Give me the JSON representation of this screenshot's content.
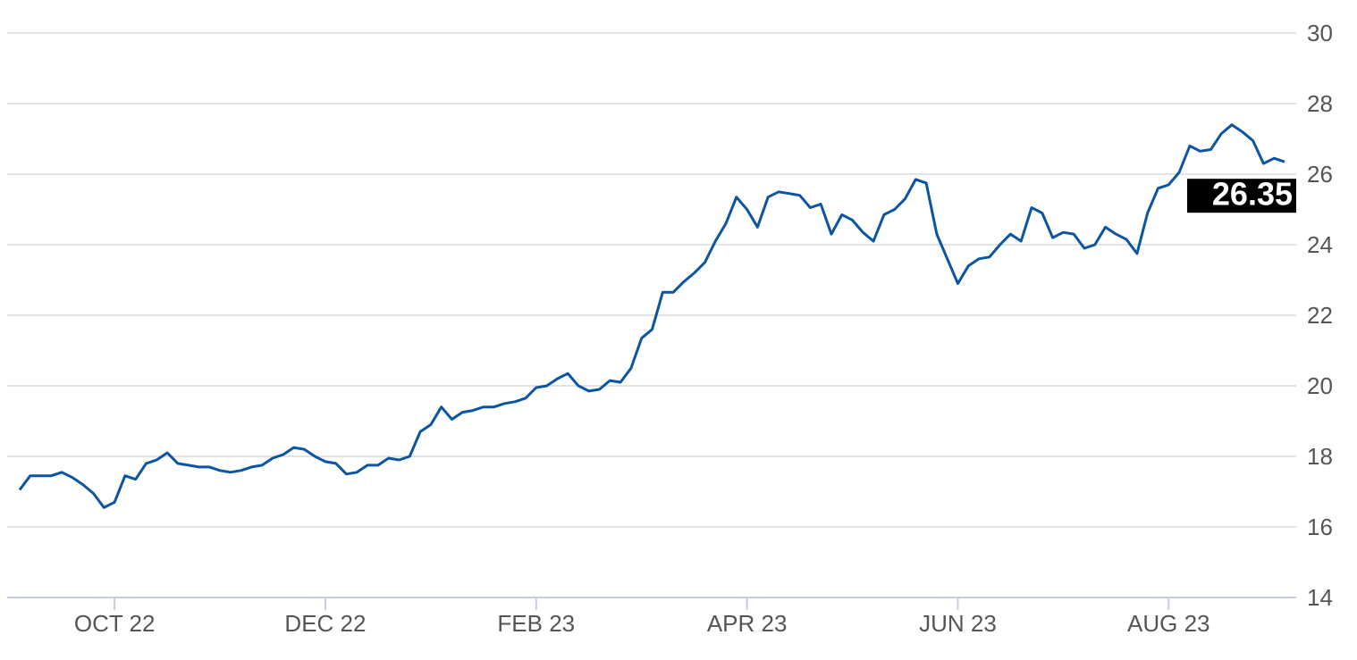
{
  "chart_data": {
    "type": "line",
    "categories": [
      null,
      null,
      null,
      null,
      null,
      null,
      null,
      null,
      null,
      "OCT 22",
      null,
      null,
      null,
      null,
      null,
      null,
      null,
      null,
      null,
      null,
      null,
      null,
      null,
      null,
      null,
      null,
      null,
      null,
      null,
      "DEC 22",
      null,
      null,
      null,
      null,
      null,
      null,
      null,
      null,
      null,
      null,
      null,
      null,
      null,
      null,
      null,
      null,
      null,
      null,
      null,
      "FEB 23",
      null,
      null,
      null,
      null,
      null,
      null,
      null,
      null,
      null,
      null,
      null,
      null,
      null,
      null,
      null,
      null,
      null,
      null,
      null,
      "APR 23",
      null,
      null,
      null,
      null,
      null,
      null,
      null,
      null,
      null,
      null,
      null,
      null,
      null,
      null,
      null,
      null,
      null,
      null,
      null,
      "JUN 23",
      null,
      null,
      null,
      null,
      null,
      null,
      null,
      null,
      null,
      null,
      null,
      null,
      null,
      null,
      null,
      null,
      null,
      null,
      null,
      "AUG 23",
      null,
      null,
      null,
      null,
      null,
      null,
      null,
      null,
      null,
      null,
      null
    ],
    "series": [
      {
        "color": "#0b55a3",
        "values": [
          17.05,
          17.45,
          17.45,
          17.45,
          17.55,
          17.4,
          17.2,
          16.95,
          16.55,
          16.7,
          17.45,
          17.35,
          17.8,
          17.9,
          18.1,
          17.8,
          17.75,
          17.7,
          17.7,
          17.6,
          17.55,
          17.6,
          17.7,
          17.75,
          17.95,
          18.05,
          18.25,
          18.2,
          18.0,
          17.85,
          17.8,
          17.5,
          17.55,
          17.75,
          17.75,
          17.95,
          17.9,
          18.0,
          18.7,
          18.9,
          19.4,
          19.05,
          19.25,
          19.3,
          19.4,
          19.4,
          19.5,
          19.55,
          19.65,
          19.95,
          20.0,
          20.2,
          20.35,
          20.0,
          19.85,
          19.9,
          20.15,
          20.1,
          20.5,
          21.35,
          21.6,
          22.65,
          22.65,
          22.95,
          23.2,
          23.5,
          24.1,
          24.6,
          25.35,
          25.0,
          24.5,
          25.35,
          25.5,
          25.45,
          25.4,
          25.05,
          25.15,
          24.3,
          24.85,
          24.7,
          24.35,
          24.1,
          24.85,
          25.0,
          25.3,
          25.85,
          25.75,
          24.3,
          23.6,
          22.9,
          23.4,
          23.6,
          23.65,
          24.0,
          24.3,
          24.1,
          25.05,
          24.9,
          24.2,
          24.35,
          24.3,
          23.9,
          24.0,
          24.5,
          24.3,
          24.15,
          23.75,
          24.9,
          25.6,
          25.7,
          26.05,
          26.8,
          26.65,
          26.7,
          27.15,
          27.4,
          27.2,
          26.95,
          26.3,
          26.45,
          26.35
        ]
      }
    ],
    "ylim": [
      14,
      30
    ],
    "yticks": [
      14,
      16,
      18,
      20,
      22,
      24,
      26,
      28,
      30
    ],
    "grid": true
  }
}
